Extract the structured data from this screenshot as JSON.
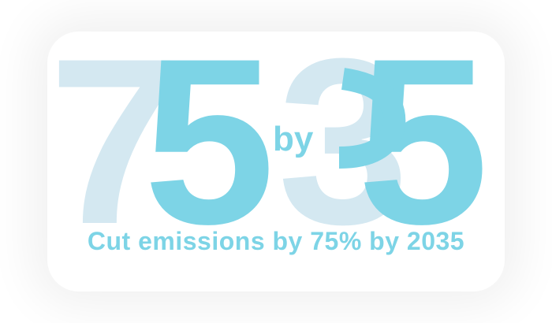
{
  "logo": {
    "d1": "7",
    "d2": "5",
    "word": "by",
    "d3": "3",
    "d4": "5"
  },
  "tagline": "Cut emissions by 75% by 2035",
  "colors": {
    "light": "#d4e8f1",
    "dark": "#7dd4e6",
    "text": "#7dd4e6",
    "background": "#ffffff"
  }
}
